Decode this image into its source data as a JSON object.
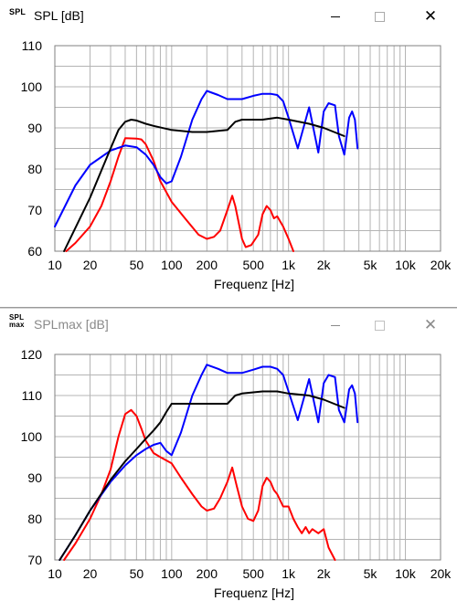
{
  "windows": [
    {
      "icon_text": "SPL",
      "title": "SPL [dB]",
      "active": true,
      "chart_data": {
        "type": "line",
        "x_scale": "log",
        "xlim": [
          10,
          20000
        ],
        "ylim": [
          60,
          110
        ],
        "x_ticks": [
          10,
          20,
          50,
          100,
          200,
          500,
          1000,
          2000,
          5000,
          10000,
          20000
        ],
        "x_tick_labels": [
          "10",
          "20",
          "50",
          "100",
          "200",
          "500",
          "1k",
          "2k",
          "5k",
          "10k",
          "20k"
        ],
        "y_ticks": [
          60,
          70,
          80,
          90,
          100,
          110
        ],
        "y_tick_labels": [
          "60",
          "70",
          "80",
          "90",
          "100",
          "110"
        ],
        "xlabel": "Frequenz [Hz]",
        "grid": true,
        "series": [
          {
            "color": "#ff0000",
            "x": [
              12.5,
              15,
              20,
              25,
              30,
              35,
              40,
              50,
              55,
              60,
              70,
              80,
              100,
              130,
              170,
              200,
              230,
              260,
              300,
              330,
              350,
              400,
              430,
              480,
              550,
              600,
              650,
              700,
              750,
              800,
              900,
              1000,
              1100
            ],
            "y": [
              60,
              62,
              66,
              71,
              77,
              83,
              87.5,
              87.4,
              87.2,
              86,
              82,
              77,
              72,
              68,
              64,
              63,
              63.5,
              65,
              70,
              73.5,
              71,
              63,
              61,
              61.5,
              64,
              69,
              71,
              70,
              68,
              68.5,
              66,
              63,
              60
            ]
          },
          {
            "color": "#0000ff",
            "x": [
              10,
              15,
              20,
              30,
              40,
              50,
              60,
              70,
              80,
              90,
              100,
              120,
              150,
              180,
              200,
              250,
              300,
              400,
              500,
              600,
              700,
              800,
              900,
              1000,
              1200,
              1500,
              1800,
              2000,
              2200,
              2500,
              2700,
              3000,
              3300,
              3500,
              3700,
              3900
            ],
            "y": [
              66,
              76,
              81,
              84.5,
              85.7,
              85.3,
              83.5,
              81,
              78,
              76.5,
              77,
              83,
              92,
              97,
              99,
              98,
              97,
              97,
              97.8,
              98.3,
              98.3,
              98,
              96.5,
              92.5,
              85,
              95,
              84,
              94,
              96,
              95.5,
              88,
              83.5,
              92.5,
              94,
              92,
              85
            ]
          },
          {
            "color": "#000000",
            "x": [
              12,
              20,
              30,
              35,
              40,
              45,
              50,
              60,
              70,
              100,
              150,
              200,
              300,
              350,
              400,
              600,
              800,
              1000,
              1500,
              2000,
              3000
            ],
            "y": [
              60,
              73,
              85,
              89.5,
              91.5,
              92,
              91.8,
              91,
              90.5,
              89.5,
              89,
              89,
              89.5,
              91.5,
              92,
              92,
              92.5,
              92,
              91,
              90,
              88
            ]
          }
        ]
      }
    },
    {
      "icon_text": "SPL max",
      "title": "SPLmax [dB]",
      "active": false,
      "chart_data": {
        "type": "line",
        "x_scale": "log",
        "xlim": [
          10,
          20000
        ],
        "ylim": [
          70,
          120
        ],
        "x_ticks": [
          10,
          20,
          50,
          100,
          200,
          500,
          1000,
          2000,
          5000,
          10000,
          20000
        ],
        "x_tick_labels": [
          "10",
          "20",
          "50",
          "100",
          "200",
          "500",
          "1k",
          "2k",
          "5k",
          "10k",
          "20k"
        ],
        "y_ticks": [
          70,
          80,
          90,
          100,
          110,
          120
        ],
        "y_tick_labels": [
          "70",
          "80",
          "90",
          "100",
          "110",
          "120"
        ],
        "xlabel": "Frequenz [Hz]",
        "grid": true,
        "series": [
          {
            "color": "#ff0000",
            "x": [
              12,
              15,
              20,
              25,
              30,
              35,
              40,
              45,
              50,
              55,
              60,
              70,
              80,
              100,
              120,
              150,
              180,
              200,
              230,
              260,
              300,
              330,
              360,
              400,
              450,
              500,
              550,
              600,
              650,
              700,
              750,
              800,
              900,
              1000,
              1100,
              1200,
              1300,
              1400,
              1500,
              1600,
              1800,
              2000,
              2200,
              2500
            ],
            "y": [
              70,
              74,
              80,
              86,
              92,
              100,
              105.5,
              106.5,
              105,
              102,
              99,
              96,
              95,
              93.5,
              90,
              86,
              83,
              82,
              82.5,
              85,
              89,
              92.5,
              88,
              83,
              80,
              79.5,
              82,
              88,
              90,
              89,
              87,
              86,
              83,
              83,
              80,
              78,
              76.5,
              78,
              76.5,
              77.5,
              76.5,
              77.5,
              73,
              70
            ]
          },
          {
            "color": "#0000ff",
            "x": [
              11,
              15,
              20,
              30,
              40,
              50,
              60,
              70,
              80,
              90,
              100,
              120,
              150,
              180,
              200,
              250,
              300,
              400,
              500,
              600,
              700,
              800,
              900,
              1000,
              1200,
              1500,
              1800,
              2000,
              2200,
              2500,
              2700,
              3000,
              3300,
              3500,
              3700,
              3900
            ],
            "y": [
              70,
              76,
              82,
              89,
              93,
              95.5,
              97,
              98,
              98.5,
              96.5,
              95.5,
              101,
              110,
              115,
              117.5,
              116.5,
              115.5,
              115.5,
              116.3,
              117,
              117,
              116.5,
              115,
              111,
              104,
              114,
              103.5,
              113,
              115,
              114.5,
              106.5,
              103.5,
              111.5,
              112.5,
              110.5,
              103.5
            ]
          },
          {
            "color": "#000000",
            "x": [
              11,
              15,
              20,
              30,
              40,
              50,
              60,
              70,
              80,
              90,
              100,
              150,
              200,
              300,
              350,
              400,
              600,
              800,
              1000,
              1500,
              2000,
              3000
            ],
            "y": [
              70,
              76,
              82,
              89.5,
              94,
              97,
              99.5,
              101.5,
              103.5,
              106,
              108,
              108,
              108,
              108,
              110,
              110.5,
              111,
              111,
              110.5,
              110,
              109,
              107
            ]
          }
        ]
      }
    }
  ]
}
